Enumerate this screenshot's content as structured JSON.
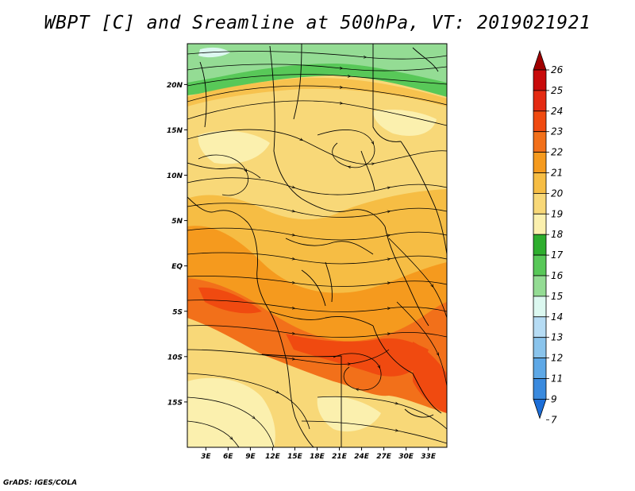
{
  "header": {
    "title": "WBPT [C] and Sreamline at 500hPa, VT: 2019021921"
  },
  "footer": {
    "credit": "GrADS: IGES/COLA"
  },
  "map": {
    "lat_ticks": [
      "20N",
      "15N",
      "10N",
      "5N",
      "EQ",
      "5S",
      "10S",
      "15S"
    ],
    "lon_ticks": [
      "3E",
      "6E",
      "9E",
      "12E",
      "15E",
      "18E",
      "21E",
      "24E",
      "27E",
      "30E",
      "33E"
    ],
    "lat_range": [
      -20,
      24.5
    ],
    "lon_range": [
      0.5,
      35.5
    ],
    "field": "WBPT [C]",
    "level": "500hPa"
  },
  "colorbar": {
    "labels": [
      "26",
      "25",
      "24",
      "23",
      "22",
      "21",
      "20",
      "19",
      "18",
      "17",
      "16",
      "15",
      "14",
      "13",
      "12",
      "11",
      "9",
      "7"
    ],
    "colors": [
      "#a00000",
      "#c80a0a",
      "#e42a12",
      "#f04a10",
      "#f2701a",
      "#f59a1e",
      "#f6bd44",
      "#f8d878",
      "#fbf0ae",
      "#2eae2e",
      "#58c858",
      "#94dc94",
      "#dcf8f0",
      "#b6dcf4",
      "#8ac4ec",
      "#5ea8e6",
      "#3a8ade",
      "#1c6ed8"
    ]
  }
}
